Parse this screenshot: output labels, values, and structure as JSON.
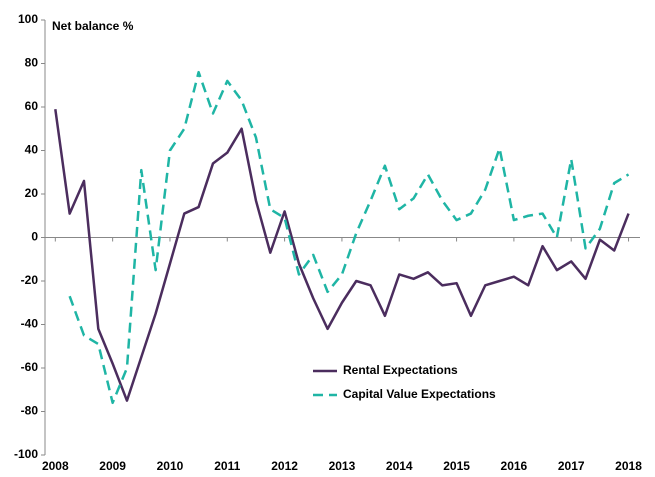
{
  "chart_data": {
    "type": "line",
    "y_label": "Net balance %",
    "x": [
      2008,
      2008.25,
      2008.5,
      2008.75,
      2009,
      2009.25,
      2009.5,
      2009.75,
      2010,
      2010.25,
      2010.5,
      2010.75,
      2011,
      2011.25,
      2011.5,
      2011.75,
      2012,
      2012.25,
      2012.5,
      2012.75,
      2013,
      2013.25,
      2013.5,
      2013.75,
      2014,
      2014.25,
      2014.5,
      2014.75,
      2015,
      2015.25,
      2015.5,
      2015.75,
      2016,
      2016.25,
      2016.5,
      2016.75,
      2017,
      2017.25,
      2017.5,
      2017.75,
      2018
    ],
    "series": [
      {
        "name": "Rental Expectations",
        "color": "#4b2d5e",
        "dashed": false,
        "values": [
          59,
          11,
          26,
          -42,
          -58,
          -75,
          -55,
          -35,
          -12,
          11,
          14,
          34,
          39,
          50,
          17,
          -7,
          12,
          -12,
          -28,
          -42,
          -30,
          -20,
          -22,
          -36,
          -17,
          -19,
          -16,
          -22,
          -21,
          -36,
          -22,
          -20,
          -18,
          -22,
          -4,
          -15,
          -11,
          -19,
          -1,
          -6,
          11
        ]
      },
      {
        "name": "Capital Value Expectations",
        "color": "#1fb5a5",
        "dashed": true,
        "values": [
          null,
          -27,
          -45,
          -49,
          -76,
          -60,
          31,
          -15,
          40,
          50,
          76,
          57,
          72,
          63,
          46,
          13,
          9,
          -17,
          -8,
          -25,
          -17,
          2,
          17,
          33,
          13,
          18,
          29,
          17,
          8,
          11,
          22,
          41,
          8,
          10,
          11,
          0,
          36,
          -5,
          4,
          25,
          29
        ]
      }
    ],
    "xlim": [
      2007.82,
      2018.2
    ],
    "xticks": [
      2008,
      2009,
      2010,
      2011,
      2012,
      2013,
      2014,
      2015,
      2016,
      2017,
      2018
    ],
    "ylim": [
      -100,
      100
    ],
    "yticks": [
      -100,
      -80,
      -60,
      -40,
      -20,
      0,
      20,
      40,
      60,
      80,
      100
    ],
    "legend": "lower center"
  }
}
